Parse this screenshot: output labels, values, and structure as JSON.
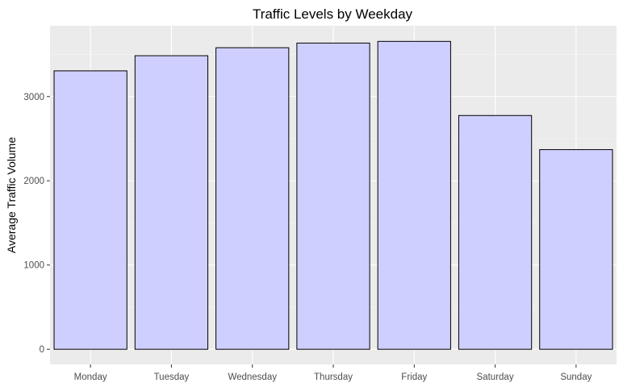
{
  "chart_data": {
    "type": "bar",
    "title": "Traffic Levels by Weekday",
    "xlabel": "",
    "ylabel": "Average Traffic Volume",
    "categories": [
      "Monday",
      "Tuesday",
      "Wednesday",
      "Thursday",
      "Friday",
      "Saturday",
      "Sunday"
    ],
    "values": [
      3305,
      3485,
      3580,
      3635,
      3655,
      2775,
      2370
    ],
    "ylim": [
      -180,
      3840
    ],
    "yticks": [
      0,
      1000,
      2000,
      3000
    ],
    "ytick_labels": [
      "0",
      "1000",
      "2000",
      "3000"
    ],
    "grid": true,
    "legend": "none",
    "colors": {
      "bar_fill": "#CFCFFF",
      "bar_stroke": "#000000",
      "panel_background": "#EBEBEB",
      "grid_major": "#FFFFFF",
      "grid_minor": "#F5F5F5",
      "tick_mark": "#333333"
    }
  }
}
